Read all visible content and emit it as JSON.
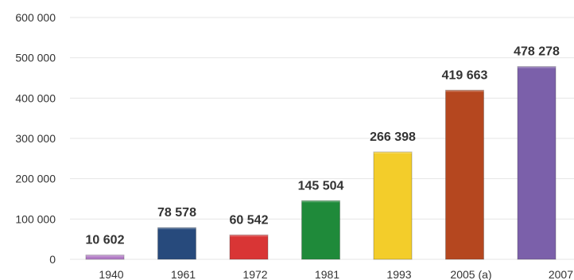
{
  "chart_data": {
    "type": "bar",
    "categories": [
      "1940",
      "1961",
      "1972",
      "1981",
      "1993",
      "2005 (a)",
      "2007"
    ],
    "values": [
      10602,
      78578,
      60542,
      145504,
      266398,
      419663,
      478278
    ],
    "value_labels": [
      "10 602",
      "78 578",
      "60 542",
      "145 504",
      "266 398",
      "419 663",
      "478 278"
    ],
    "colors": [
      "#b27cc6",
      "#274a7c",
      "#d93535",
      "#1f8a3a",
      "#f3cd2a",
      "#b5471f",
      "#7b60aa"
    ],
    "yticks": [
      "0",
      "100 000",
      "200 000",
      "300 000",
      "400 000",
      "500 000",
      "600 000"
    ],
    "ylim": [
      0,
      600000
    ],
    "grid": true,
    "legend": "none"
  }
}
